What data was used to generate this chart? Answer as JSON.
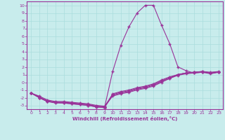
{
  "bg_color": "#c8ecec",
  "line_color": "#993399",
  "grid_color": "#aadddd",
  "xlabel": "Windchill (Refroidissement éolien,°C)",
  "xlim": [
    -0.5,
    23.5
  ],
  "ylim": [
    -3.5,
    10.5
  ],
  "xticks": [
    0,
    1,
    2,
    3,
    4,
    5,
    6,
    7,
    8,
    9,
    10,
    11,
    12,
    13,
    14,
    15,
    16,
    17,
    18,
    19,
    20,
    21,
    22,
    23
  ],
  "yticks": [
    -3,
    -2,
    -1,
    0,
    1,
    2,
    3,
    4,
    5,
    6,
    7,
    8,
    9,
    10
  ],
  "line1_x": [
    0,
    1,
    2,
    3,
    4,
    5,
    6,
    7,
    8,
    9,
    10,
    11,
    12,
    13,
    14,
    15,
    16,
    17,
    18,
    19,
    20,
    21,
    22,
    23
  ],
  "line1_y": [
    -1.4,
    -2.0,
    -2.5,
    -2.7,
    -2.7,
    -2.8,
    -2.9,
    -3.0,
    -3.2,
    -3.3,
    1.4,
    4.8,
    7.2,
    9.0,
    10.0,
    10.0,
    7.4,
    5.0,
    2.0,
    1.5,
    1.2,
    1.3,
    1.1,
    1.3
  ],
  "line2_x": [
    0,
    1,
    2,
    3,
    4,
    5,
    6,
    7,
    8,
    9,
    10,
    11,
    12,
    13,
    14,
    15,
    16,
    17,
    18,
    19,
    20,
    21,
    22,
    23
  ],
  "line2_y": [
    -1.4,
    -1.8,
    -2.3,
    -2.5,
    -2.5,
    -2.6,
    -2.7,
    -2.8,
    -3.0,
    -3.1,
    -1.8,
    -1.5,
    -1.3,
    -1.0,
    -0.8,
    -0.5,
    0.0,
    0.5,
    1.0,
    1.2,
    1.3,
    1.4,
    1.3,
    1.4
  ],
  "line3_x": [
    0,
    1,
    2,
    3,
    4,
    5,
    6,
    7,
    8,
    9,
    10,
    11,
    12,
    13,
    14,
    15,
    16,
    17,
    18,
    19,
    20,
    21,
    22,
    23
  ],
  "line3_y": [
    -1.4,
    -1.9,
    -2.4,
    -2.6,
    -2.6,
    -2.7,
    -2.8,
    -2.9,
    -3.1,
    -3.2,
    -1.6,
    -1.3,
    -1.1,
    -0.8,
    -0.6,
    -0.3,
    0.2,
    0.6,
    1.0,
    1.2,
    1.3,
    1.35,
    1.25,
    1.35
  ],
  "line4_x": [
    0,
    1,
    2,
    3,
    4,
    5,
    6,
    7,
    8,
    9,
    10,
    11,
    12,
    13,
    14,
    15,
    16,
    17,
    18,
    19,
    20,
    21,
    22,
    23
  ],
  "line4_y": [
    -1.4,
    -2.0,
    -2.5,
    -2.6,
    -2.6,
    -2.7,
    -2.8,
    -2.9,
    -3.1,
    -3.2,
    -1.5,
    -1.2,
    -1.0,
    -0.7,
    -0.5,
    -0.2,
    0.3,
    0.7,
    1.0,
    1.2,
    1.3,
    1.4,
    1.2,
    1.3
  ],
  "line5_x": [
    0,
    1,
    2,
    3,
    4,
    5,
    6,
    7,
    8,
    9,
    10,
    11,
    12,
    13,
    14,
    15,
    16,
    17,
    18,
    19,
    20,
    21,
    22,
    23
  ],
  "line5_y": [
    -1.4,
    -2.0,
    -2.5,
    -2.6,
    -2.7,
    -2.8,
    -2.9,
    -3.0,
    -3.2,
    -3.3,
    -1.7,
    -1.4,
    -1.2,
    -0.9,
    -0.7,
    -0.4,
    0.1,
    0.5,
    0.9,
    1.1,
    1.2,
    1.3,
    1.2,
    1.3
  ]
}
